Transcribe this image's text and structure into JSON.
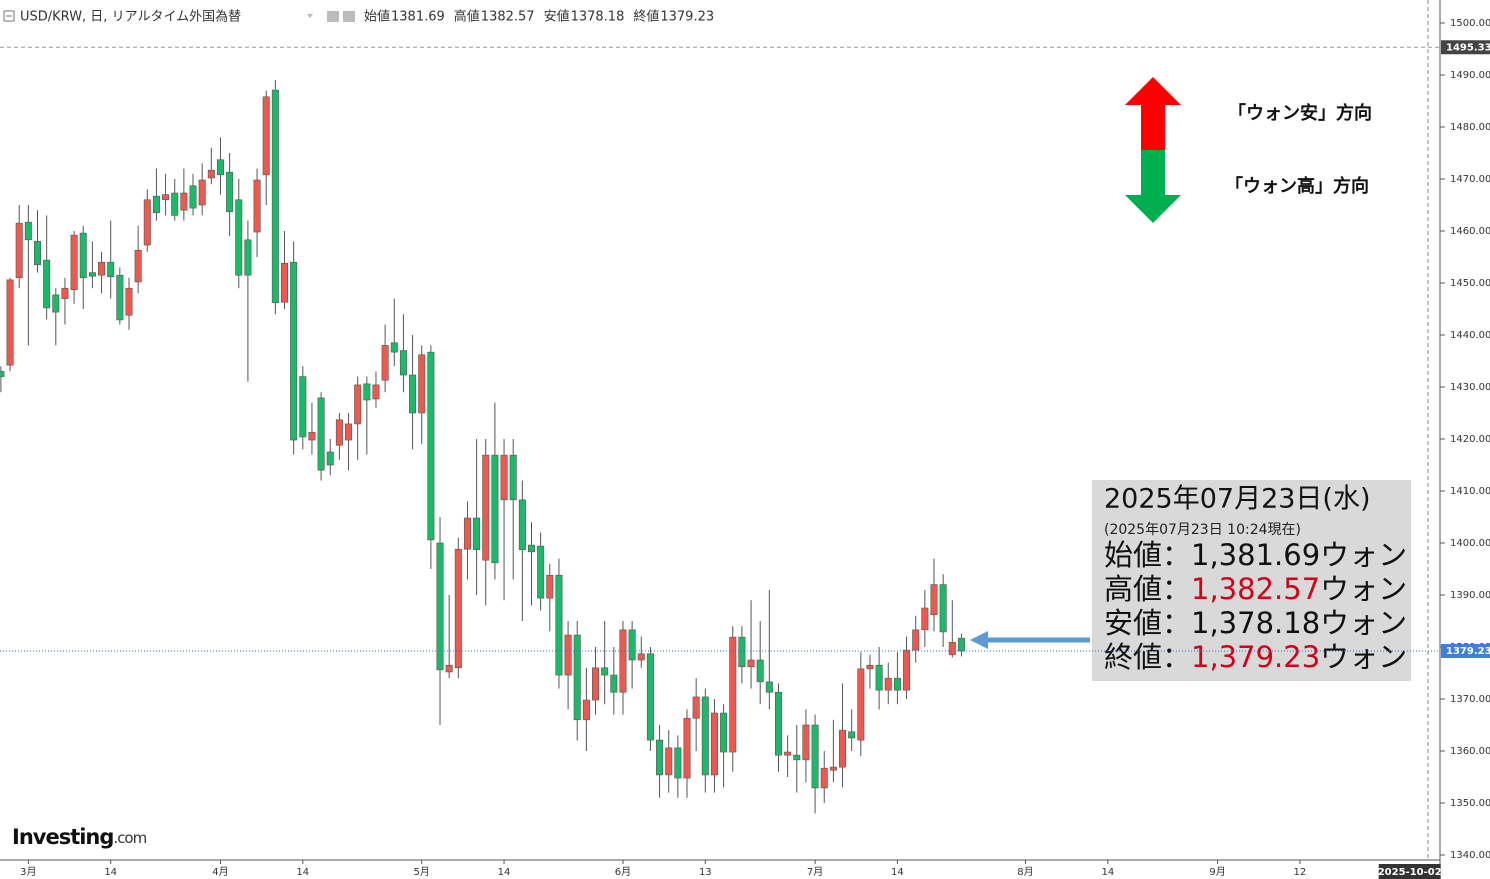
{
  "header": {
    "title": "USD/KRW, 日, リアルタイム外国為替",
    "ohlc": [
      {
        "label": "始値",
        "value": 1381.69
      },
      {
        "label": "高値",
        "value": 1382.57
      },
      {
        "label": "安値",
        "value": 1378.18
      },
      {
        "label": "終値",
        "value": 1379.23
      }
    ]
  },
  "chart_data": {
    "type": "candlestick",
    "up_color": "#ec5a4f",
    "down_color": "#1db868",
    "open": [
      1433,
      1434.2,
      1451,
      1461.7,
      1458,
      1454.4,
      1447.7,
      1447,
      1448.7,
      1459.6,
      1452,
      1451.5,
      1454,
      1451.5,
      1443.8,
      1450.2,
      1457.3,
      1466.7,
      1466,
      1467.3,
      1464,
      1468.7,
      1465,
      1470.2,
      1473.7,
      1471.3,
      1466,
      1458.3,
      1459.8,
      1470.8,
      1487.1,
      1446.3,
      1454,
      1432,
      1419.8,
      1427.9,
      1417.5,
      1418.8,
      1419.8,
      1422.9,
      1430.6,
      1427.7,
      1431.3,
      1438.5,
      1437,
      1432.3,
      1425,
      1436.7,
      1400,
      1375.2,
      1376,
      1398.8,
      1404.8,
      1396.7,
      1416.9,
      1408.3,
      1416.9,
      1408.3,
      1399.6,
      1399.4,
      1389.4,
      1393.8,
      1374.6,
      1382.3,
      1366,
      1369.8,
      1376,
      1374.6,
      1371.3,
      1383.3,
      1377.5,
      1378.7,
      1362.1,
      1355.4,
      1360.6,
      1354.8,
      1366.3,
      1370.4,
      1355.4,
      1367.3,
      1359.8,
      1381.9,
      1376.2,
      1377.5,
      1373.3,
      1371.3,
      1359.2,
      1359.2,
      1358.3,
      1365,
      1352.9,
      1356.3,
      1356.9,
      1363.7,
      1362.1,
      1375.8,
      1376.5,
      1371.7,
      1374,
      1371.7,
      1379.4,
      1383.3,
      1386.2,
      1392,
      1378.5,
      1381.69
    ],
    "high": [
      1434,
      1451,
      1465,
      1465,
      1464,
      1463,
      1449,
      1451,
      1460,
      1461,
      1458,
      1456,
      1462,
      1453,
      1451,
      1461,
      1468,
      1472,
      1471,
      1470,
      1472,
      1471,
      1473,
      1476,
      1478,
      1475,
      1470,
      1462,
      1472,
      1487,
      1489,
      1460,
      1458,
      1434,
      1427,
      1429,
      1420,
      1425,
      1425,
      1432,
      1432,
      1433,
      1442,
      1447,
      1444,
      1440,
      1438,
      1438,
      1405,
      1390,
      1401,
      1408,
      1420,
      1420,
      1427,
      1420,
      1420,
      1412,
      1404,
      1402,
      1396,
      1397,
      1385,
      1385,
      1376,
      1380,
      1385,
      1380,
      1385,
      1385,
      1382,
      1380,
      1365,
      1364,
      1363,
      1368,
      1374,
      1372,
      1370,
      1369,
      1384,
      1384,
      1389,
      1385,
      1391,
      1373,
      1363,
      1365,
      1368,
      1367,
      1360,
      1366,
      1373,
      1368,
      1379,
      1378.5,
      1380,
      1377,
      1379,
      1382,
      1386,
      1391,
      1397,
      1394,
      1389,
      1382.57
    ],
    "low": [
      1429,
      1433,
      1449,
      1438,
      1452,
      1443,
      1438,
      1442,
      1446,
      1445,
      1449,
      1448,
      1447,
      1442,
      1441,
      1448,
      1456,
      1462,
      1463,
      1462,
      1462,
      1463,
      1463,
      1469,
      1467,
      1459,
      1449,
      1431,
      1455,
      1465,
      1444,
      1445,
      1417,
      1418,
      1417,
      1412,
      1413,
      1416,
      1414,
      1416,
      1417,
      1426,
      1429,
      1434,
      1429,
      1418,
      1419,
      1395,
      1365,
      1374,
      1374,
      1393,
      1390,
      1388,
      1393,
      1389,
      1393,
      1385,
      1388,
      1387,
      1383,
      1372,
      1368,
      1362,
      1360,
      1367,
      1369,
      1367,
      1367,
      1372,
      1376,
      1360,
      1351,
      1352,
      1351,
      1351,
      1360,
      1352,
      1352,
      1353,
      1356,
      1373,
      1372,
      1369,
      1368,
      1356,
      1355,
      1352,
      1354,
      1348,
      1350,
      1354,
      1353,
      1360,
      1359,
      1372,
      1368,
      1369,
      1369,
      1370,
      1377,
      1380,
      1383,
      1380,
      1378,
      1378.18
    ],
    "close": [
      1432,
      1450.6,
      1461.5,
      1458.3,
      1453.5,
      1445.2,
      1444.4,
      1449,
      1459.2,
      1451,
      1451.3,
      1454,
      1451.2,
      1442.9,
      1449,
      1456.3,
      1466,
      1463.5,
      1467,
      1463,
      1467.3,
      1464.4,
      1469.8,
      1471.7,
      1470.8,
      1463.7,
      1451.5,
      1451.5,
      1469.8,
      1485.8,
      1446.2,
      1453.8,
      1419.8,
      1420.4,
      1421.3,
      1414,
      1415,
      1423.7,
      1422.9,
      1430.4,
      1427.5,
      1430.4,
      1438,
      1436.7,
      1432.3,
      1425,
      1436.2,
      1400.6,
      1375.6,
      1376.5,
      1398.8,
      1404.8,
      1398.7,
      1416.9,
      1396.2,
      1416.9,
      1408.3,
      1398.7,
      1398.3,
      1389.4,
      1393.8,
      1374.6,
      1382.3,
      1366,
      1369.8,
      1376,
      1374.6,
      1371.3,
      1383.3,
      1377.5,
      1378.7,
      1362.1,
      1355.4,
      1360.6,
      1354.8,
      1366.3,
      1370.4,
      1355.4,
      1367.3,
      1359.8,
      1381.9,
      1376.2,
      1377.5,
      1373.3,
      1371.3,
      1359.2,
      1359.8,
      1358.3,
      1365,
      1352.9,
      1356.7,
      1356.9,
      1364,
      1362.5,
      1375.8,
      1376.5,
      1371.7,
      1374,
      1371.7,
      1379.4,
      1383.3,
      1387.5,
      1392,
      1382.9,
      1380.9,
      1379.23
    ],
    "xlim": [
      -0.1,
      156
    ],
    "ylim": [
      1339.04,
      1504.42
    ],
    "xticks": [
      {
        "value": 3,
        "label": "3月"
      },
      {
        "value": 12,
        "label": "14"
      },
      {
        "value": 24,
        "label": "4月"
      },
      {
        "value": 33,
        "label": "14"
      },
      {
        "value": 46,
        "label": "5月"
      },
      {
        "value": 55,
        "label": "14"
      },
      {
        "value": 68,
        "label": "6月"
      },
      {
        "value": 77,
        "label": "13"
      },
      {
        "value": 89,
        "label": "7月"
      },
      {
        "value": 98,
        "label": "14"
      },
      {
        "value": 112,
        "label": "8月"
      },
      {
        "value": 121,
        "label": "14"
      },
      {
        "value": 133,
        "label": "9月"
      },
      {
        "value": 142,
        "label": "12"
      }
    ],
    "yticks": [
      {
        "value": 1500,
        "label": "1500.00"
      },
      {
        "value": 1490,
        "label": "1490.00"
      },
      {
        "value": 1480,
        "label": "1480.00"
      },
      {
        "value": 1470,
        "label": "1470.00"
      },
      {
        "value": 1460,
        "label": "1460.00"
      },
      {
        "value": 1450,
        "label": "1450.00"
      },
      {
        "value": 1440,
        "label": "1440.00"
      },
      {
        "value": 1430,
        "label": "1430.00"
      },
      {
        "value": 1420,
        "label": "1420.00"
      },
      {
        "value": 1410,
        "label": "1410.00"
      },
      {
        "value": 1400,
        "label": "1400.00"
      },
      {
        "value": 1390,
        "label": "1390.00"
      },
      {
        "value": 1380,
        "label": "1380.00"
      },
      {
        "value": 1370,
        "label": "1370.00"
      },
      {
        "value": 1360,
        "label": "1360.00"
      },
      {
        "value": 1350,
        "label": "1350.00"
      },
      {
        "value": 1340,
        "label": "1340.00"
      }
    ],
    "x_marker": {
      "value": 154,
      "label": "2025-10-02"
    },
    "high_line": 1495.33,
    "last_price": 1379.23
  },
  "annotations": {
    "up": "「ウォン安」方向",
    "down": "「ウォン高」方向"
  },
  "info": {
    "date": "2025年07月23日(水)",
    "asof": "(2025年07月23日 10:24現在)",
    "rows": [
      {
        "label": "始値：",
        "value": 1381.69,
        "value_label": "1,381.69",
        "unit": "ウォン",
        "color": "#111111"
      },
      {
        "label": "高値：",
        "value": 1382.57,
        "value_label": "1,382.57",
        "unit": "ウォン",
        "color": "#d0021b"
      },
      {
        "label": "安値：",
        "value": 1378.18,
        "value_label": "1,378.18",
        "unit": "ウォン",
        "color": "#111111"
      },
      {
        "label": "終値：",
        "value": 1379.23,
        "value_label": "1,379.23",
        "unit": "ウォン",
        "color": "#d0021b"
      }
    ]
  },
  "logo": {
    "brand": "Investing",
    "suffix": ".com"
  }
}
